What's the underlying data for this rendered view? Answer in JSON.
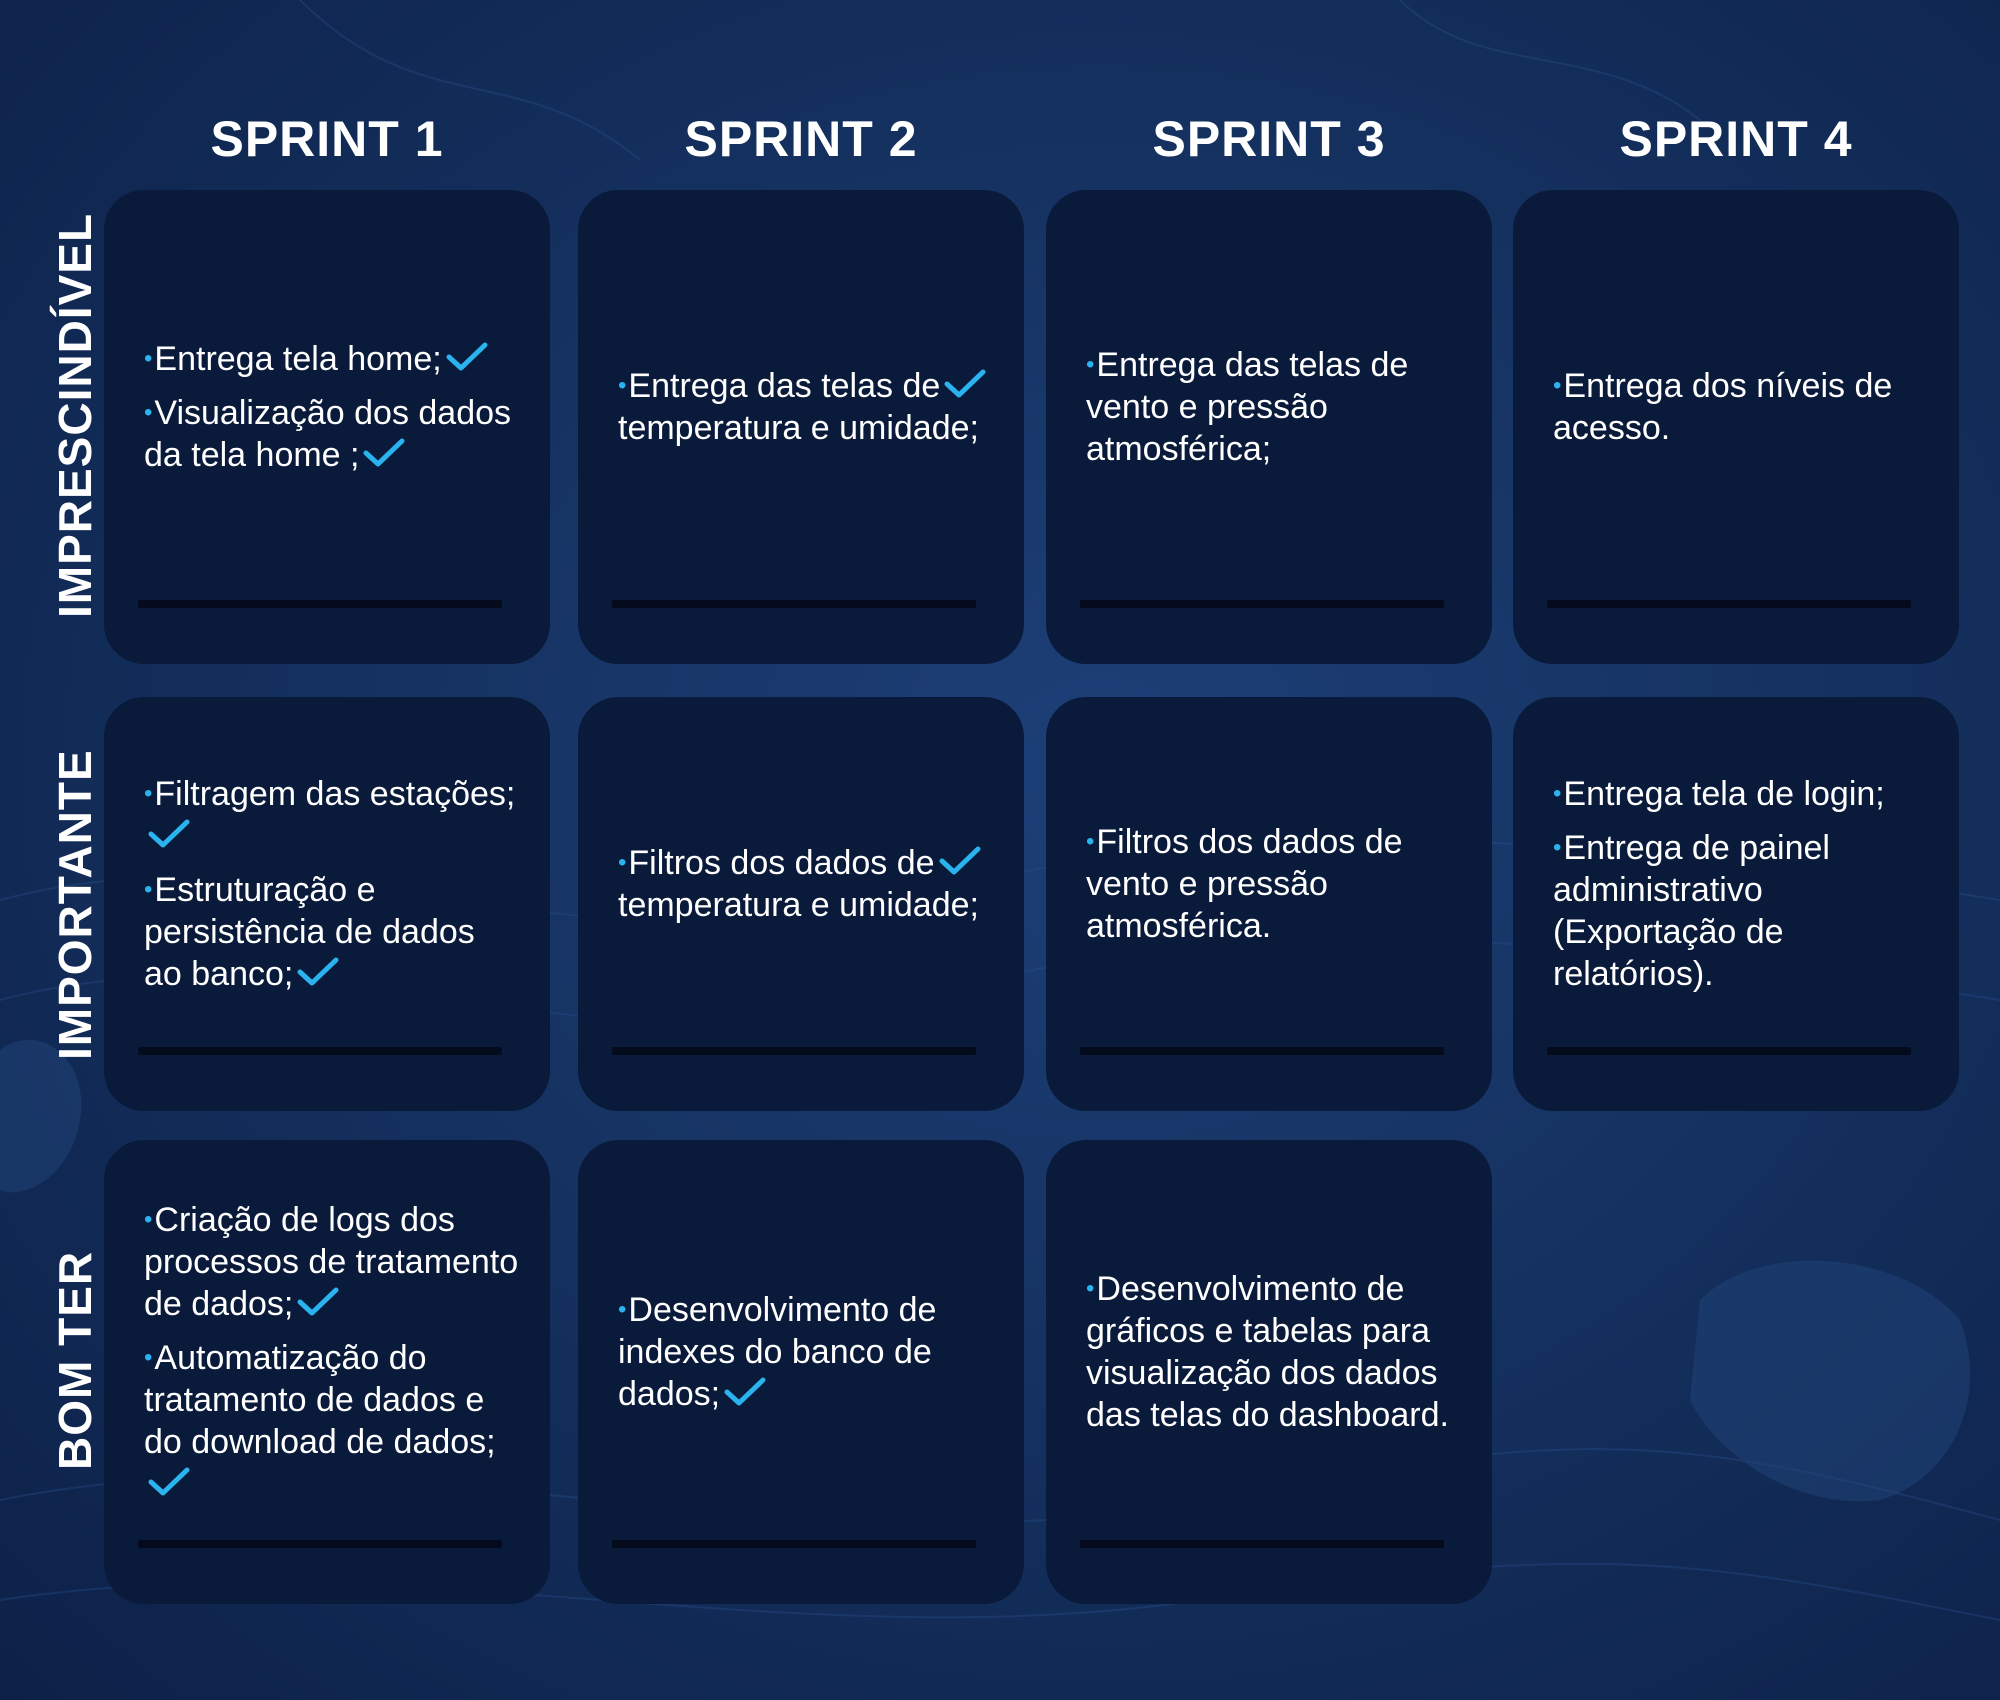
{
  "colors": {
    "background": "#173566",
    "card": "#0a1a3a",
    "check": "#2ab3ee",
    "text": "#ffffff"
  },
  "columns": [
    "SPRINT 1",
    "SPRINT 2",
    "SPRINT 3",
    "SPRINT 4"
  ],
  "rows": [
    "IMPRESCINDÍVEL",
    "IMPORTANTE",
    "BOM TER"
  ],
  "cards": [
    {
      "row": 0,
      "col": 0,
      "items": [
        {
          "text": "Entrega tela home;",
          "done": true
        },
        {
          "text": "Visualização dos dados da tela home ;",
          "done": true
        }
      ]
    },
    {
      "row": 0,
      "col": 1,
      "items": [
        {
          "text": "Entrega das telas de temperatura e umidade;",
          "done": true,
          "check_mid": true
        }
      ]
    },
    {
      "row": 0,
      "col": 2,
      "items": [
        {
          "text": "Entrega das telas de vento e pressão atmosférica;",
          "done": false
        }
      ]
    },
    {
      "row": 0,
      "col": 3,
      "items": [
        {
          "text": "Entrega dos níveis de acesso.",
          "done": false
        }
      ]
    },
    {
      "row": 1,
      "col": 0,
      "items": [
        {
          "text": "Filtragem das estações;",
          "done": true
        },
        {
          "text": "Estruturação e persistência de dados ao banco;",
          "done": true
        }
      ]
    },
    {
      "row": 1,
      "col": 1,
      "items": [
        {
          "text": "Filtros dos dados de temperatura e umidade;",
          "done": true,
          "check_mid": true
        }
      ]
    },
    {
      "row": 1,
      "col": 2,
      "items": [
        {
          "text": "Filtros dos dados de vento e pressão atmosférica.",
          "done": false
        }
      ]
    },
    {
      "row": 1,
      "col": 3,
      "items": [
        {
          "text": "Entrega tela de login;",
          "done": false
        },
        {
          "text": "Entrega de painel administrativo (Exportação de relatórios).",
          "done": false
        }
      ]
    },
    {
      "row": 2,
      "col": 0,
      "items": [
        {
          "text": "Criação de logs dos processos de tratamento de dados;",
          "done": true
        },
        {
          "text": "Automatização do tratamento de dados e do download de dados;",
          "done": true
        }
      ]
    },
    {
      "row": 2,
      "col": 1,
      "items": [
        {
          "text": "Desenvolvimento de indexes do banco de dados;",
          "done": true
        }
      ]
    },
    {
      "row": 2,
      "col": 2,
      "items": [
        {
          "text": "Desenvolvimento de gráficos e tabelas para visualização dos dados das telas do dashboard.",
          "done": false
        }
      ]
    }
  ]
}
